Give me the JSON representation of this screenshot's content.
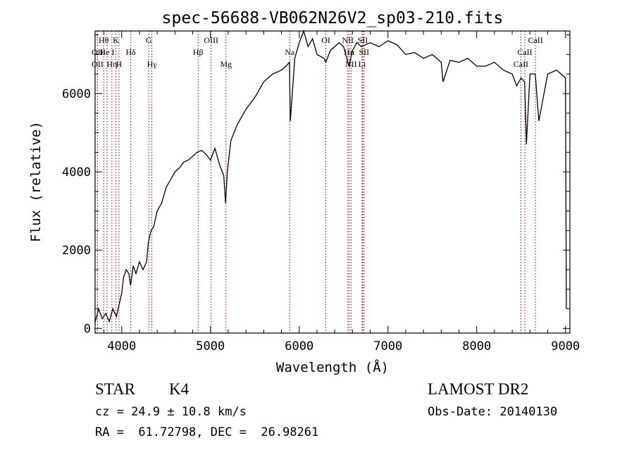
{
  "chart_data": {
    "type": "line",
    "title": "spec-56688-VB062N26V2_sp03-210.fits",
    "xlabel": "Wavelength (Å)",
    "ylabel": "Flux (relative)",
    "xlim": [
      3700,
      9050
    ],
    "ylim": [
      -120,
      7600
    ],
    "x_ticks": [
      4000,
      5000,
      6000,
      7000,
      8000,
      9000
    ],
    "y_ticks": [
      0,
      2000,
      4000,
      6000
    ],
    "grid": false,
    "series": [
      {
        "x": [
          3700,
          3740,
          3780,
          3820,
          3860,
          3900,
          3940,
          3980,
          4000,
          4020,
          4050,
          4080,
          4100,
          4130,
          4160,
          4200,
          4240,
          4280,
          4300,
          4330,
          4360,
          4400,
          4450,
          4500,
          4550,
          4600,
          4650,
          4700,
          4750,
          4800,
          4850,
          4900,
          4950,
          5000,
          5050,
          5100,
          5150,
          5170,
          5190,
          5230,
          5300,
          5400,
          5500,
          5600,
          5700,
          5800,
          5850,
          5890,
          5900,
          5950,
          6000,
          6050,
          6100,
          6150,
          6200,
          6280,
          6300,
          6350,
          6400,
          6450,
          6500,
          6560,
          6600,
          6650,
          6700,
          6800,
          6900,
          7000,
          7100,
          7200,
          7300,
          7400,
          7500,
          7600,
          7620,
          7700,
          7800,
          7900,
          8000,
          8100,
          8200,
          8300,
          8400,
          8450,
          8500,
          8540,
          8560,
          8600,
          8660,
          8700,
          8800,
          8900,
          8950,
          9000,
          9010
        ],
        "y": [
          150,
          500,
          250,
          380,
          180,
          500,
          300,
          700,
          900,
          1300,
          1500,
          1400,
          1100,
          1600,
          1400,
          1700,
          1500,
          1700,
          2200,
          2500,
          2600,
          3000,
          3200,
          3600,
          3800,
          4000,
          4100,
          4250,
          4300,
          4400,
          4500,
          4550,
          4450,
          4300,
          4600,
          4200,
          3900,
          3200,
          4000,
          4800,
          5200,
          5600,
          5900,
          6300,
          6500,
          6600,
          6700,
          6800,
          5300,
          6900,
          7300,
          7600,
          7200,
          7400,
          7000,
          6900,
          6800,
          7100,
          7200,
          7300,
          7200,
          6700,
          7100,
          7300,
          7200,
          7300,
          7200,
          7350,
          7250,
          7000,
          7050,
          6900,
          7000,
          6800,
          6300,
          6850,
          6800,
          6900,
          6700,
          6700,
          6800,
          6600,
          6500,
          6200,
          6400,
          6300,
          4700,
          6500,
          6500,
          5300,
          6500,
          6600,
          6500,
          6400,
          500
        ]
      }
    ],
    "lines": [
      {
        "label": "Hθ",
        "x": 3797,
        "row": 1
      },
      {
        "label": "OII",
        "x": 3727,
        "row": 2
      },
      {
        "label": "OII",
        "x": 3727,
        "row": 3
      },
      {
        "label": "He I",
        "x": 3835,
        "row": 2
      },
      {
        "label": "Hη",
        "x": 3889,
        "row": 3
      },
      {
        "label": "K",
        "x": 3934,
        "row": 1
      },
      {
        "label": "H",
        "x": 3969,
        "row": 3
      },
      {
        "label": "Hδ",
        "x": 4102,
        "row": 2
      },
      {
        "label": "G",
        "x": 4305,
        "row": 1
      },
      {
        "label": "Hγ",
        "x": 4340,
        "row": 3
      },
      {
        "label": "OIII",
        "x": 5007,
        "row": 1
      },
      {
        "label": "Hβ",
        "x": 4861,
        "row": 2
      },
      {
        "label": "Mg",
        "x": 5175,
        "row": 3
      },
      {
        "label": "Na",
        "x": 5893,
        "row": 2
      },
      {
        "label": "OI",
        "x": 6300,
        "row": 1
      },
      {
        "label": "NII",
        "x": 6548,
        "row": 1
      },
      {
        "label": "SII",
        "x": 6716,
        "row": 1
      },
      {
        "label": "Hα",
        "x": 6563,
        "row": 2
      },
      {
        "label": "SII",
        "x": 6731,
        "row": 2
      },
      {
        "label": "NII",
        "x": 6584,
        "row": 3
      },
      {
        "label": "Li",
        "x": 6708,
        "row": 3
      },
      {
        "label": "CaII",
        "x": 8662,
        "row": 1
      },
      {
        "label": "CaII",
        "x": 8542,
        "row": 2
      },
      {
        "label": "CaII",
        "x": 8498,
        "row": 3
      }
    ]
  },
  "footer": {
    "object_class": "STAR",
    "subclass": "K4",
    "survey": "LAMOST DR2",
    "redshift": "cz = 24.9 ± 10.8 km/s",
    "obs_date": "Obs-Date: 20140130",
    "coords": "RA =  61.72798, DEC =  26.98261"
  }
}
